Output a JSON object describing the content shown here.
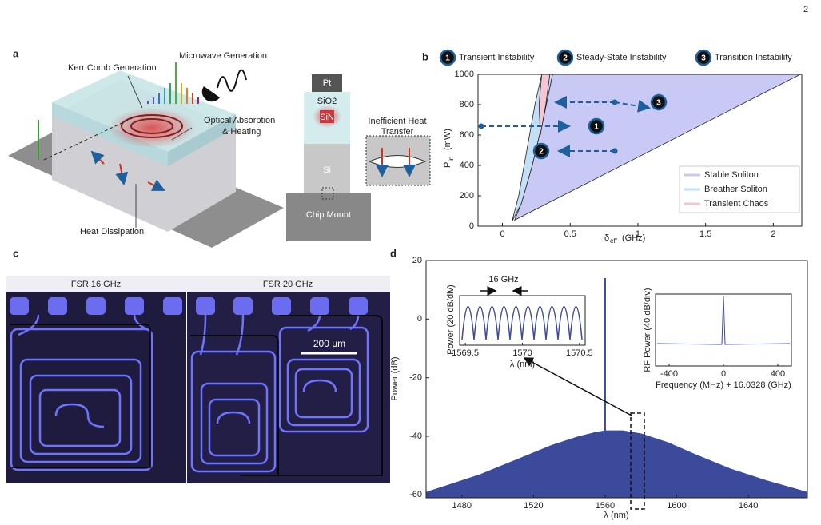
{
  "page_number": "2",
  "panel_a": {
    "label": "a",
    "texts": [
      "Kerr Comb Generation",
      "Microwave Generation",
      "Optical Absorption",
      "& Heating",
      "Heat Dissipation",
      "Pt",
      "SiO2",
      "SiN",
      "Si",
      "Chip Mount",
      "Inefficient Heat",
      "Transfer"
    ]
  },
  "panel_b": {
    "label": "b",
    "markers": [
      {
        "number": "1",
        "label": "Transient Instability"
      },
      {
        "number": "2",
        "label": "Steady-State Instability"
      },
      {
        "number": "3",
        "label": "Transition Instability"
      }
    ],
    "chart_data": {
      "type": "area",
      "xlabel": "δ",
      "xlabel_sub": "eff",
      "xlabel_unit": "(GHz)",
      "ylabel": "P",
      "ylabel_sub": "in",
      "ylabel_unit": "(mW)",
      "xlim": [
        -0.18,
        2.21
      ],
      "ylim": [
        0,
        1000
      ],
      "xticks": [
        0,
        0.5,
        1,
        1.5,
        2
      ],
      "yticks": [
        0,
        200,
        400,
        600,
        800,
        1000
      ],
      "series": [
        {
          "name": "Stable Soliton",
          "color": "#c9c9f5",
          "x": [
            0.09,
            2.2,
            0.37,
            0.3,
            0.22,
            0.14
          ],
          "values": [
            40,
            1000,
            1000,
            700,
            400,
            150
          ]
        },
        {
          "name": "Breather Soliton",
          "color": "#c2dff5",
          "x": [
            0.07,
            0.14,
            0.22,
            0.3,
            0.37,
            0.29,
            0.24,
            0.18,
            0.12
          ],
          "values": [
            30,
            150,
            400,
            700,
            1000,
            1000,
            800,
            500,
            200
          ]
        },
        {
          "name": "Transient Chaos",
          "color": "#f5c6d4",
          "x": [
            0.28,
            0.32,
            0.35,
            0.29,
            0.27
          ],
          "values": [
            600,
            800,
            1000,
            1000,
            800
          ]
        }
      ]
    }
  },
  "panel_c": {
    "label": "c",
    "titles": [
      "FSR 16 GHz",
      "FSR 20 GHz"
    ],
    "scale_bar": "200 μm"
  },
  "panel_d": {
    "label": "d",
    "chart_data": {
      "type": "area",
      "xlabel": "λ (nm)",
      "ylabel": "Power (dB)",
      "color": "#3b4a9a",
      "xlim": [
        1460,
        1673
      ],
      "ylim": [
        -61,
        20
      ],
      "xticks": [
        1480,
        1520,
        1560,
        1600,
        1640
      ],
      "yticks": [
        -60,
        -40,
        -20,
        0,
        20
      ],
      "x": [
        1460,
        1470,
        1490,
        1510,
        1530,
        1545,
        1555,
        1560,
        1570,
        1580,
        1595,
        1610,
        1630,
        1650,
        1673
      ],
      "values": [
        -59,
        -57,
        -53,
        -48,
        -43,
        -40,
        -38.5,
        -38,
        -38,
        -39,
        -42,
        -46,
        -51,
        -55,
        -59
      ],
      "pump": {
        "x": 1560,
        "value": 14
      },
      "insets": [
        {
          "ylabel": "Power (20 dB/div)",
          "xlabel": "λ (nm)",
          "annotation": "16 GHz",
          "xlim": [
            1569.45,
            1570.55
          ],
          "xticks": [
            1569.5,
            1570,
            1570.5
          ]
        },
        {
          "ylabel": "RF Power (40 dB/div)",
          "xlabel": "Frequency (MHz) + 16.0328 (GHz)",
          "xlim": [
            -500,
            500
          ],
          "xticks": [
            -400,
            0,
            400
          ]
        }
      ]
    }
  }
}
